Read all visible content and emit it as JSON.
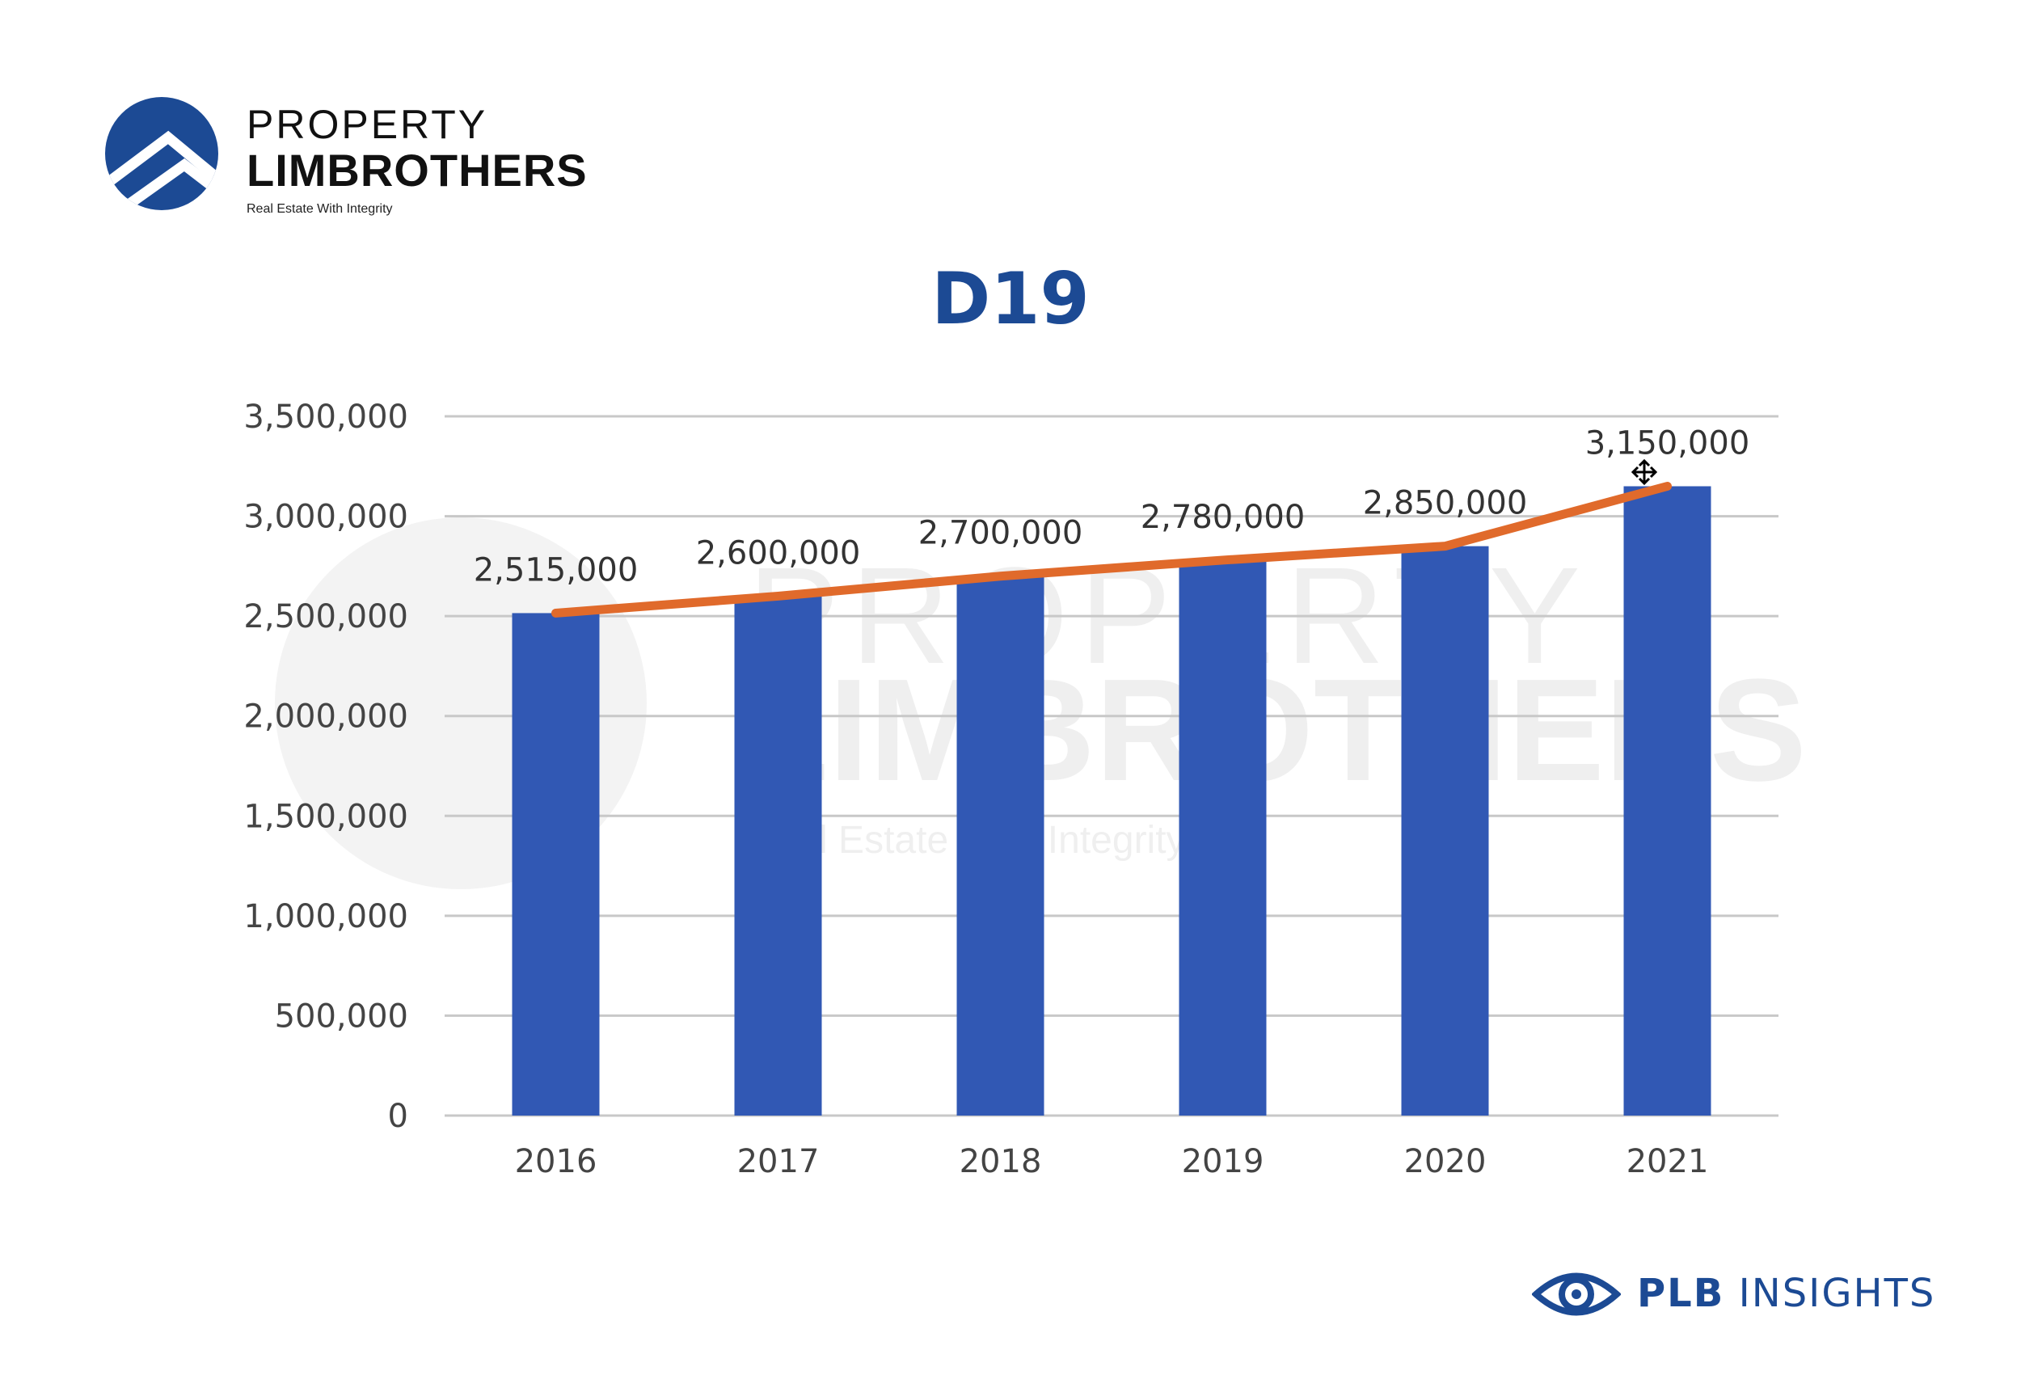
{
  "brand": {
    "line1": "PROPERTY",
    "line2": "LIMBROTHERS",
    "tagline": "Real Estate With Integrity",
    "primary_color": "#1c4a94"
  },
  "watermark": {
    "line1": "PROPERTY",
    "line2": "LIMBROTHERS",
    "tagline": "Real Estate With Integrity"
  },
  "footer": {
    "strong": "PLB",
    "label": "INSIGHTS",
    "icon": "eye-icon"
  },
  "chart_data": {
    "type": "bar",
    "title": "D19",
    "categories": [
      "2016",
      "2017",
      "2018",
      "2019",
      "2020",
      "2021"
    ],
    "values": [
      2515000,
      2600000,
      2700000,
      2780000,
      2850000,
      3150000
    ],
    "data_labels": [
      "2,515,000",
      "2,600,000",
      "2,700,000",
      "2,780,000",
      "2,850,000",
      "3,150,000"
    ],
    "ylim": [
      0,
      3500000
    ],
    "yticks": [
      0,
      500000,
      1000000,
      1500000,
      2000000,
      2500000,
      3000000,
      3500000
    ],
    "ytick_labels": [
      "0",
      "500,000",
      "1,000,000",
      "1,500,000",
      "2,000,000",
      "2,500,000",
      "3,000,000",
      "3,500,000"
    ],
    "xlabel": "",
    "ylabel": "",
    "grid": true,
    "overlay_line": true,
    "bar_color": "#3158b4",
    "line_color": "#e06a2b",
    "grid_color": "#c8c8c8"
  }
}
